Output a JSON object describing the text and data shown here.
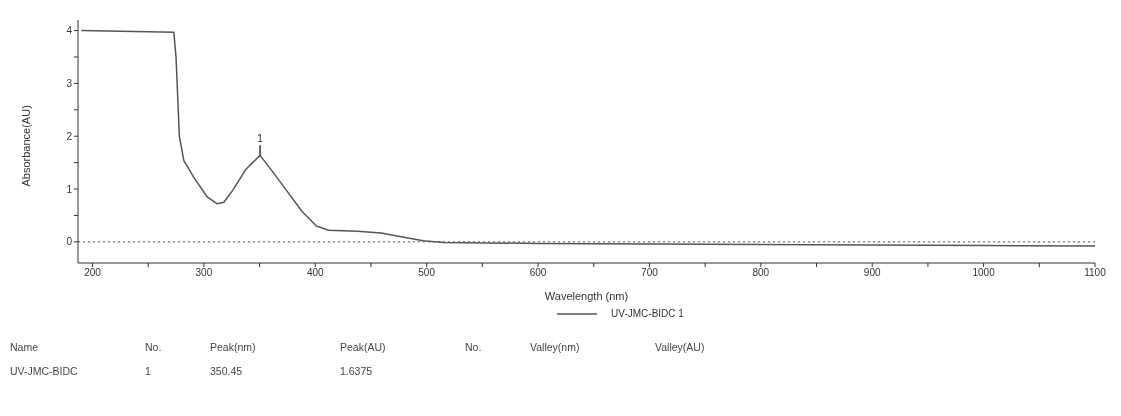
{
  "chart_data": {
    "type": "line",
    "xlabel": "Wavelength (nm)",
    "ylabel": "Absorbance(AU)",
    "xlim": [
      187,
      1100
    ],
    "ylim": [
      -0.4,
      4.2
    ],
    "xticks": [
      200,
      {
        "value": 250,
        "label": null
      },
      300,
      {
        "value": 350,
        "label": null
      },
      400,
      {
        "value": 450,
        "label": null
      },
      500,
      {
        "value": 550,
        "label": null
      },
      600,
      {
        "value": 650,
        "label": null
      },
      700,
      {
        "value": 750,
        "label": null
      },
      800,
      {
        "value": 850,
        "label": null
      },
      900,
      {
        "value": 950,
        "label": null
      },
      1000,
      {
        "value": 1050,
        "label": null
      },
      1100
    ],
    "yticks": [
      0,
      {
        "value": 0.5,
        "label": null
      },
      1,
      {
        "value": 1.5,
        "label": null
      },
      2,
      {
        "value": 2.5,
        "label": null
      },
      3,
      {
        "value": 3.5,
        "label": null
      },
      4
    ],
    "grid": false,
    "legend": "bottom",
    "marker": "none",
    "line_style": "solid",
    "ref_lines": [
      {
        "axis": "y",
        "value": 0,
        "line_style": "dotted",
        "color": "#555555"
      }
    ],
    "series": [
      {
        "name": "UV-JMC-BIDC 1",
        "color": "#555555",
        "x": [
          190,
          273,
          275,
          278,
          282,
          291,
          303,
          312,
          318,
          326,
          338,
          350.45,
          362,
          374,
          388,
          401,
          412,
          438,
          459,
          482,
          497,
          515,
          600,
          800,
          1000,
          1100
        ],
        "values": [
          4.0,
          3.97,
          3.5,
          2.0,
          1.54,
          1.22,
          0.85,
          0.72,
          0.75,
          0.98,
          1.38,
          1.6375,
          1.32,
          0.98,
          0.58,
          0.3,
          0.22,
          0.2,
          0.17,
          0.08,
          0.02,
          -0.01,
          -0.03,
          -0.05,
          -0.07,
          -0.08
        ]
      }
    ],
    "annotations": [
      {
        "text": "1",
        "x": 350.45,
        "y": 1.6375
      },
      "Name",
      "No.",
      "Peak(nm)",
      "Peak(AU)",
      "No.",
      "Valley(nm)",
      "Valley(AU)",
      "UV-JMC-BIDC",
      "1",
      "350.45",
      "1.6375"
    ]
  }
}
